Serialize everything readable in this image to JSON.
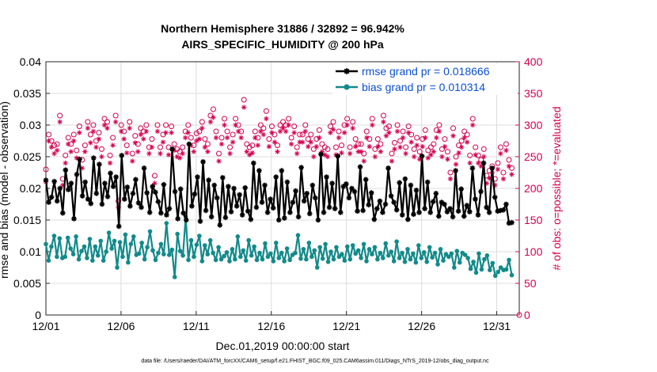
{
  "chart_data": {
    "type": "line",
    "title": "Northern Hemisphere 31886 / 32892 = 96.942%",
    "subtitle": "AIRS_SPECIFIC_HUMIDITY @ 200 hPa",
    "xlabel": "Dec.01,2019 00:00:00 start",
    "ylabel": "rmse and bias (model - observation)",
    "y2label": "# of obs: o=possible; *=evaluated",
    "ylim": [
      0,
      0.04
    ],
    "y2lim": [
      0,
      400
    ],
    "yticks": [
      "0",
      "0.005",
      "0.01",
      "0.015",
      "0.02",
      "0.025",
      "0.03",
      "0.035",
      "0.04"
    ],
    "y2ticks": [
      "0",
      "50",
      "100",
      "150",
      "200",
      "250",
      "300",
      "350",
      "400"
    ],
    "xticks": [
      "12/01",
      "12/06",
      "12/11",
      "12/16",
      "12/21",
      "12/26",
      "12/31"
    ],
    "xlim": [
      0,
      31.5
    ],
    "grid": true,
    "legend_position": "top-right",
    "footnote": "data file: /Users/raeder/DAI/ATM_forcXX/CAM6_setup/f.e21.FHIST_BGC.f09_025.CAM6assim.011/Diags_NTrS_2019-12/obs_diag_output.nc",
    "colors": {
      "rmse": "#000000",
      "bias": "#138a8a",
      "obs": "#d6004f"
    },
    "series": [
      {
        "name": "rmse grand pr = 0.018666",
        "values": [
          0.0213,
          0.0178,
          0.0186,
          0.0211,
          0.018,
          0.02,
          0.0161,
          0.0229,
          0.0198,
          0.0208,
          0.0152,
          0.0222,
          0.0246,
          0.0188,
          0.021,
          0.0183,
          0.0176,
          0.0248,
          0.0192,
          0.0238,
          0.0175,
          0.0208,
          0.0187,
          0.0224,
          0.0203,
          0.0218,
          0.014,
          0.0252,
          0.0183,
          0.0202,
          0.0172,
          0.0192,
          0.0214,
          0.0177,
          0.017,
          0.0232,
          0.0193,
          0.0162,
          0.0203,
          0.0194,
          0.0179,
          0.0161,
          0.0206,
          0.0158,
          0.0168,
          0.0262,
          0.0195,
          0.0152,
          0.0199,
          0.0161,
          0.015,
          0.027,
          0.0172,
          0.0191,
          0.0218,
          0.0148,
          0.0242,
          0.0165,
          0.0213,
          0.0155,
          0.0205,
          0.0185,
          0.0142,
          0.0217,
          0.0154,
          0.0203,
          0.0163,
          0.02,
          0.0172,
          0.019,
          0.0158,
          0.0201,
          0.0164,
          0.0151,
          0.024,
          0.017,
          0.0228,
          0.0178,
          0.0205,
          0.0162,
          0.0183,
          0.0169,
          0.0218,
          0.015,
          0.0228,
          0.0153,
          0.021,
          0.0162,
          0.0178,
          0.0196,
          0.0155,
          0.0233,
          0.018,
          0.0192,
          0.016,
          0.0205,
          0.0185,
          0.015,
          0.0254,
          0.0162,
          0.0218,
          0.017,
          0.0208,
          0.0168,
          0.0251,
          0.0162,
          0.0203,
          0.0207,
          0.0185,
          0.02,
          0.0195,
          0.0164,
          0.0234,
          0.0165,
          0.0214,
          0.0174,
          0.0193,
          0.0151,
          0.0168,
          0.018,
          0.0162,
          0.0175,
          0.0232,
          0.0188,
          0.0178,
          0.0166,
          0.0209,
          0.0158,
          0.0215,
          0.0151,
          0.0205,
          0.0159,
          0.0197,
          0.0162,
          0.0251,
          0.0168,
          0.021,
          0.0162,
          0.0179,
          0.0192,
          0.0156,
          0.0178,
          0.0175,
          0.0163,
          0.0168,
          0.0155,
          0.0228,
          0.0164,
          0.0199,
          0.0156,
          0.0173,
          0.0163,
          0.0232,
          0.0183,
          0.0158,
          0.0195,
          0.024,
          0.017,
          0.0162,
          0.0232,
          0.0186,
          0.0164,
          0.0165,
          0.0166,
          0.0175,
          0.0145,
          0.0146
        ]
      },
      {
        "name": "bias grand pr = 0.010314",
        "values": [
          0.0112,
          0.0086,
          0.0108,
          0.0125,
          0.0092,
          0.0121,
          0.009,
          0.0092,
          0.0122,
          0.0105,
          0.0096,
          0.0124,
          0.0088,
          0.0101,
          0.0108,
          0.009,
          0.012,
          0.0086,
          0.0108,
          0.0094,
          0.0117,
          0.0086,
          0.01,
          0.013,
          0.0105,
          0.0117,
          0.0075,
          0.0115,
          0.0092,
          0.0127,
          0.0083,
          0.0112,
          0.0124,
          0.0095,
          0.0097,
          0.0114,
          0.0088,
          0.0107,
          0.0132,
          0.0102,
          0.0087,
          0.0098,
          0.0112,
          0.0096,
          0.0145,
          0.0095,
          0.0103,
          0.006,
          0.0128,
          0.0101,
          0.0094,
          0.0155,
          0.0087,
          0.0118,
          0.0092,
          0.0111,
          0.0125,
          0.0085,
          0.011,
          0.0096,
          0.0118,
          0.0098,
          0.0087,
          0.0107,
          0.0088,
          0.0093,
          0.0099,
          0.0085,
          0.0104,
          0.0088,
          0.0124,
          0.0092,
          0.0102,
          0.0086,
          0.0118,
          0.0094,
          0.0108,
          0.0087,
          0.0098,
          0.0088,
          0.0113,
          0.0092,
          0.0097,
          0.0085,
          0.0114,
          0.009,
          0.0098,
          0.0085,
          0.0105,
          0.0087,
          0.0095,
          0.0098,
          0.0126,
          0.0089,
          0.0104,
          0.0088,
          0.0114,
          0.0092,
          0.0102,
          0.0075,
          0.0107,
          0.0089,
          0.0112,
          0.0084,
          0.01,
          0.0088,
          0.0107,
          0.0092,
          0.0096,
          0.0086,
          0.0108,
          0.0088,
          0.011,
          0.0097,
          0.0102,
          0.009,
          0.0112,
          0.0085,
          0.0104,
          0.0096,
          0.0107,
          0.0088,
          0.0098,
          0.009,
          0.0113,
          0.0094,
          0.01,
          0.0085,
          0.0116,
          0.009,
          0.0098,
          0.0084,
          0.0104,
          0.0088,
          0.0097,
          0.0083,
          0.011,
          0.009,
          0.0099,
          0.0084,
          0.0107,
          0.0091,
          0.0098,
          0.008,
          0.0104,
          0.0086,
          0.0096,
          0.0092,
          0.0097,
          0.0075,
          0.0101,
          0.0083,
          0.0098,
          0.0095,
          0.009,
          0.0073,
          0.0084,
          0.0067,
          0.0097,
          0.0072,
          0.0088,
          0.0094,
          0.0071,
          0.0082,
          0.0062,
          0.0068,
          0.0075,
          0.0071,
          0.0072,
          0.0087,
          0.0063
        ]
      },
      {
        "name": "obs possible",
        "values": [
          230,
          285,
          275,
          268,
          270,
          315,
          215,
          252,
          280,
          270,
          285,
          260,
          298,
          245,
          268,
          305,
          285,
          300,
          275,
          288,
          262,
          310,
          305,
          252,
          280,
          315,
          180,
          300,
          290,
          268,
          305,
          255,
          283,
          270,
          295,
          290,
          300,
          265,
          278,
          220,
          300,
          265,
          285,
          300,
          265,
          298,
          270,
          262,
          258,
          265,
          290,
          300,
          280,
          268,
          287,
          290,
          305,
          278,
          270,
          315,
          325,
          290,
          255,
          280,
          310,
          290,
          265,
          285,
          310,
          300,
          290,
          340,
          270,
          265,
          268,
          290,
          280,
          300,
          295,
          322,
          278,
          298,
          285,
          268,
          300,
          305,
          300,
          310,
          280,
          298,
          265,
          285,
          285,
          300,
          278,
          285,
          262,
          278,
          292,
          270,
          265,
          262,
          298,
          305,
          265,
          290,
          268,
          300,
          310,
          265,
          305,
          278,
          270,
          270,
          255,
          290,
          278,
          310,
          262,
          278,
          270,
          315,
          295,
          298,
          255,
          272,
          300,
          275,
          290,
          265,
          298,
          285,
          262,
          280,
          258,
          278,
          292,
          260,
          265,
          270,
          292,
          300,
          262,
          278,
          258,
          225,
          295,
          250,
          268,
          275,
          290,
          285,
          252,
          310,
          265,
          252,
          245,
          262,
          220,
          228,
          235,
          215,
          240,
          265,
          225,
          270,
          245,
          232
        ]
      },
      {
        "name": "obs evaluated",
        "values": [
          210,
          275,
          265,
          255,
          260,
          305,
          205,
          240,
          270,
          258,
          275,
          248,
          288,
          232,
          258,
          295,
          272,
          290,
          265,
          278,
          250,
          300,
          295,
          240,
          268,
          305,
          170,
          290,
          278,
          256,
          295,
          243,
          272,
          258,
          285,
          278,
          290,
          255,
          265,
          208,
          290,
          255,
          273,
          288,
          253,
          288,
          260,
          250,
          248,
          255,
          280,
          288,
          268,
          258,
          275,
          278,
          295,
          265,
          258,
          305,
          312,
          280,
          243,
          270,
          300,
          280,
          255,
          273,
          300,
          290,
          280,
          328,
          258,
          253,
          256,
          280,
          268,
          290,
          285,
          310,
          266,
          288,
          273,
          258,
          290,
          295,
          290,
          300,
          270,
          288,
          255,
          273,
          273,
          290,
          266,
          273,
          250,
          266,
          280,
          258,
          253,
          250,
          288,
          293,
          253,
          280,
          256,
          288,
          300,
          255,
          295,
          266,
          258,
          258,
          243,
          280,
          266,
          300,
          250,
          266,
          258,
          305,
          283,
          288,
          243,
          262,
          290,
          265,
          280,
          255,
          288,
          273,
          250,
          268,
          246,
          266,
          280,
          248,
          253,
          258,
          280,
          290,
          250,
          266,
          246,
          215,
          283,
          238,
          256,
          265,
          280,
          273,
          240,
          300,
          253,
          240,
          235,
          250,
          208,
          216,
          225,
          205,
          230,
          255,
          215,
          260,
          235,
          222
        ]
      }
    ]
  }
}
